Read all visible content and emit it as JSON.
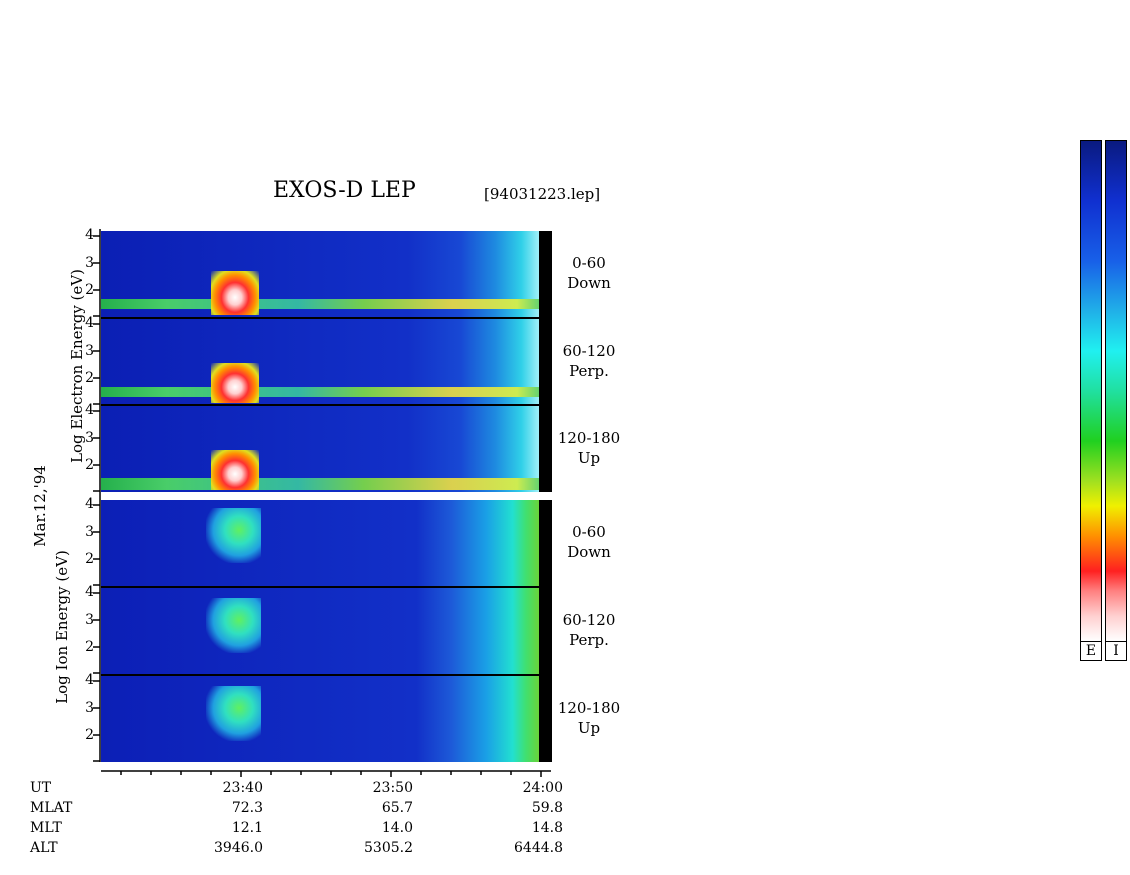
{
  "title": "EXOS-D LEP",
  "file_label": "[94031223.lep]",
  "date_label": "Mar.12,'94",
  "electron_axis_label": "Log Electron Energy (eV)",
  "ion_axis_label": "Log Ion Energy (eV)",
  "panels": [
    {
      "species": "electron",
      "angle": "0-60",
      "direction": "Down"
    },
    {
      "species": "electron",
      "angle": "60-120",
      "direction": "Perp."
    },
    {
      "species": "electron",
      "angle": "120-180",
      "direction": "Up"
    },
    {
      "species": "ion",
      "angle": "0-60",
      "direction": "Down"
    },
    {
      "species": "ion",
      "angle": "60-120",
      "direction": "Perp."
    },
    {
      "species": "ion",
      "angle": "120-180",
      "direction": "Up"
    }
  ],
  "colorbar_labels": [
    "E",
    "I"
  ],
  "colors": {
    "background_blue": "#1030c8",
    "endbar": "#000000"
  },
  "chart_data": {
    "type": "heatmap",
    "title": "EXOS-D LEP",
    "y_ticks": [
      "4",
      "3",
      "2"
    ],
    "ion_upper_y_ticks": [
      "4",
      "3",
      "2"
    ],
    "last_panel_y_ticks": [
      "4",
      "3",
      "2"
    ],
    "x_ticks": [
      "23:40",
      "23:50",
      "24:00"
    ],
    "ephemeris": [
      {
        "label": "UT",
        "values": [
          "23:40",
          "23:50",
          "24:00"
        ]
      },
      {
        "label": "MLAT",
        "values": [
          "72.3",
          "65.7",
          "59.8"
        ]
      },
      {
        "label": "MLT",
        "values": [
          "12.1",
          "14.0",
          "14.8"
        ]
      },
      {
        "label": "ALT",
        "values": [
          "3946.0",
          "5305.2",
          "6444.8"
        ]
      }
    ]
  }
}
